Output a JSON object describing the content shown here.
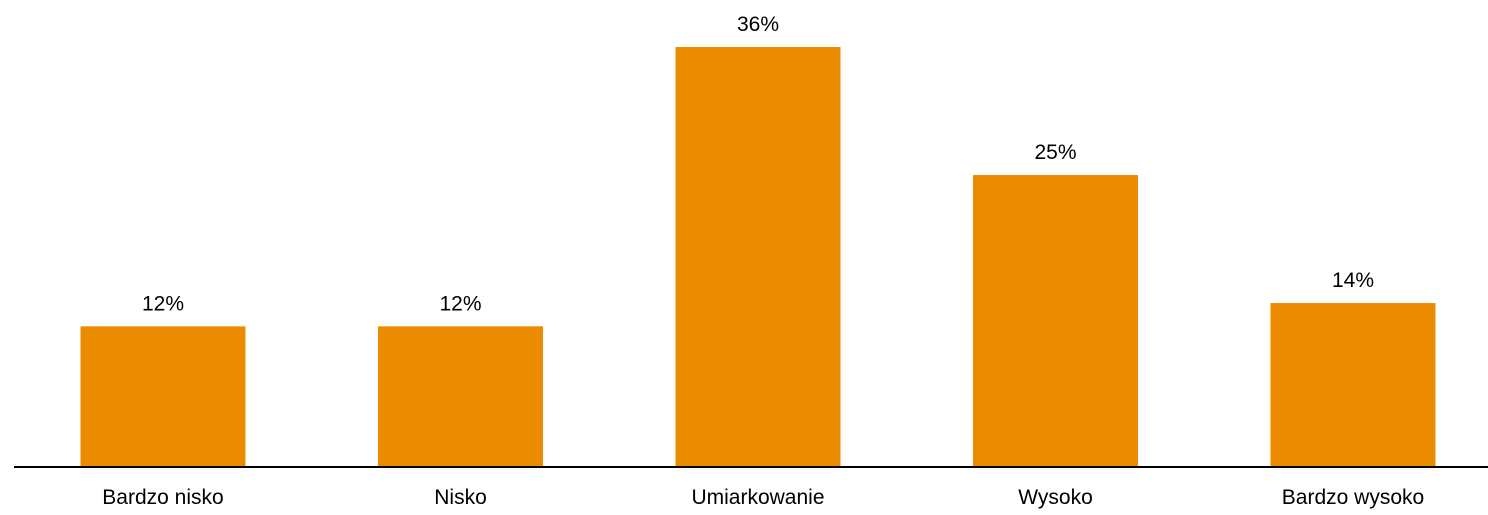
{
  "chart_data": {
    "type": "bar",
    "title": "",
    "xlabel": "",
    "ylabel": "",
    "categories": [
      "Bardzo nisko",
      "Nisko",
      "Umiarkowanie",
      "Wysoko",
      "Bardzo wysoko"
    ],
    "values": [
      12,
      12,
      36,
      25,
      14
    ],
    "value_labels": [
      "12%",
      "12%",
      "36%",
      "25%",
      "14%"
    ],
    "unit": "%",
    "ylim": [
      0,
      36
    ],
    "grid": false,
    "legend": "none",
    "bar_color": "#EB8C00",
    "axis_color": "#000000"
  }
}
